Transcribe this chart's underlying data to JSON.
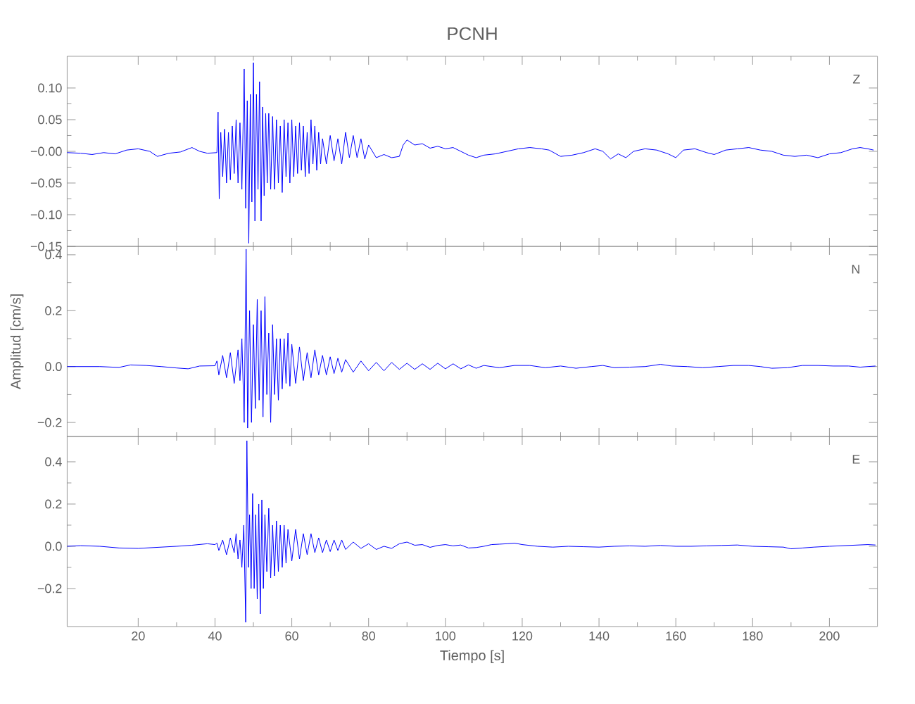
{
  "chart_data": [
    {
      "type": "line",
      "title": "PCNH",
      "annotations": [
        "Z"
      ],
      "color": "#0000ff",
      "tick_labels": "y",
      "xlim": [
        1.5,
        212.5
      ],
      "xticks": [
        20,
        40,
        60,
        80,
        100,
        120,
        140,
        160,
        180,
        200
      ],
      "ylim": [
        -0.15,
        0.15
      ],
      "yticks": [
        {
          "value": -0.15,
          "label": "−0.15"
        },
        {
          "value": -0.1,
          "label": "−0.10"
        },
        {
          "value": -0.05,
          "label": "−0.05"
        },
        {
          "value": 0,
          "label": "−0.00"
        },
        {
          "value": 0.05,
          "label": "0.05"
        },
        {
          "value": 0.1,
          "label": "0.10"
        }
      ],
      "x": [
        1.5,
        5,
        8,
        11,
        14,
        17,
        20,
        23,
        25,
        28,
        31,
        34,
        36,
        38,
        40.5,
        40.8,
        41.1,
        41.5,
        42,
        42.5,
        43,
        43.5,
        44,
        44.5,
        45,
        45.5,
        46,
        46.5,
        47,
        47.6,
        48,
        48.4,
        48.8,
        49.2,
        49.6,
        50,
        50.4,
        50.8,
        51.2,
        51.6,
        52,
        52.4,
        52.8,
        53.2,
        53.6,
        54,
        54.5,
        55,
        55.5,
        56,
        56.5,
        57,
        57.5,
        58,
        58.5,
        59,
        59.5,
        60,
        60.5,
        61,
        61.5,
        62,
        62.5,
        63,
        63.5,
        64,
        64.5,
        65,
        65.5,
        66,
        66.5,
        67,
        67.5,
        68,
        69,
        70,
        71,
        72,
        73,
        74,
        75,
        76,
        77,
        78,
        79,
        80,
        82,
        84,
        86,
        88,
        89,
        90,
        92,
        94,
        96,
        98,
        100,
        102,
        104,
        106,
        108,
        110,
        113,
        116,
        119,
        122,
        125,
        127,
        130,
        133,
        136,
        139,
        141,
        143,
        145,
        147,
        149,
        152,
        155,
        158,
        160,
        162,
        165,
        168,
        170,
        173,
        176,
        179,
        182,
        185,
        188,
        191,
        194,
        197,
        200,
        203,
        206,
        208,
        210,
        211.5
      ],
      "values": [
        -0.002,
        -0.003,
        -0.005,
        -0.002,
        -0.004,
        0.002,
        0.004,
        0.0,
        -0.008,
        -0.003,
        -0.001,
        0.006,
        0.0,
        -0.003,
        -0.002,
        0.062,
        -0.075,
        0.03,
        -0.04,
        0.035,
        -0.05,
        0.03,
        -0.045,
        0.04,
        -0.035,
        0.05,
        -0.05,
        0.045,
        -0.06,
        0.13,
        -0.09,
        0.08,
        -0.145,
        0.09,
        -0.08,
        0.14,
        -0.11,
        0.09,
        -0.06,
        0.11,
        -0.11,
        0.07,
        -0.07,
        0.06,
        -0.05,
        0.06,
        -0.06,
        0.055,
        -0.06,
        0.05,
        -0.05,
        0.04,
        -0.065,
        0.05,
        -0.04,
        0.045,
        -0.05,
        0.05,
        -0.04,
        0.04,
        -0.035,
        0.045,
        -0.03,
        0.04,
        -0.04,
        0.03,
        -0.035,
        0.05,
        -0.02,
        0.04,
        -0.03,
        0.03,
        -0.02,
        0.02,
        -0.02,
        0.025,
        -0.015,
        0.02,
        -0.02,
        0.03,
        -0.01,
        0.025,
        -0.01,
        0.02,
        -0.012,
        0.01,
        -0.01,
        -0.005,
        -0.01,
        -0.008,
        0.01,
        0.018,
        0.01,
        0.012,
        0.005,
        0.008,
        0.004,
        0.006,
        0.0,
        -0.006,
        -0.01,
        -0.006,
        -0.004,
        0.0,
        0.004,
        0.006,
        0.004,
        0.002,
        -0.008,
        -0.006,
        -0.002,
        0.004,
        0.0,
        -0.012,
        -0.004,
        -0.01,
        0.0,
        0.004,
        0.002,
        -0.004,
        -0.01,
        0.002,
        0.004,
        -0.002,
        -0.005,
        0.002,
        0.004,
        0.006,
        0.002,
        0.0,
        -0.006,
        -0.008,
        -0.006,
        -0.01,
        -0.004,
        -0.002,
        0.004,
        0.006,
        0.004,
        0.002
      ]
    },
    {
      "type": "line",
      "ylabel": "Amplitud [cm/s]",
      "annotations": [
        "N"
      ],
      "color": "#0000ff",
      "tick_labels": "y",
      "xlim": [
        1.5,
        212.5
      ],
      "xticks": [
        20,
        40,
        60,
        80,
        100,
        120,
        140,
        160,
        180,
        200
      ],
      "ylim": [
        -0.25,
        0.43
      ],
      "yticks": [
        {
          "value": -0.2,
          "label": "−0.2"
        },
        {
          "value": 0,
          "label": "0.0"
        },
        {
          "value": 0.2,
          "label": "0.2"
        },
        {
          "value": 0.4,
          "label": "0.4"
        }
      ],
      "x": [
        1.5,
        10,
        15,
        18,
        22,
        26,
        30,
        33,
        36,
        40,
        40.5,
        41,
        42,
        43,
        44,
        45,
        46,
        46.5,
        47,
        47.6,
        48.1,
        48.5,
        49,
        49.5,
        50,
        50.5,
        51,
        51.5,
        52,
        52.5,
        53,
        53.5,
        54,
        54.5,
        55,
        55.5,
        56,
        56.5,
        57,
        57.5,
        58,
        58.5,
        59,
        59.5,
        60,
        61,
        62,
        63,
        64,
        65,
        66,
        67,
        68,
        69,
        70,
        71,
        72,
        73,
        74,
        76,
        78,
        80,
        82,
        84,
        86,
        88,
        90,
        92,
        94,
        96,
        98,
        100,
        102,
        104,
        106,
        108,
        110,
        114,
        118,
        122,
        126,
        130,
        134,
        138,
        141,
        144,
        148,
        152,
        156,
        159,
        163,
        167,
        171,
        175,
        179,
        182,
        185,
        189,
        193,
        197,
        201,
        205,
        208,
        212
      ],
      "values": [
        0,
        0,
        -0.003,
        0.006,
        0.004,
        0.0,
        -0.005,
        -0.008,
        0.002,
        0.003,
        0.02,
        -0.03,
        0.04,
        -0.04,
        0.05,
        -0.06,
        0.06,
        -0.05,
        0.1,
        -0.2,
        0.42,
        -0.22,
        0.2,
        -0.2,
        0.15,
        -0.15,
        0.24,
        -0.12,
        0.2,
        -0.18,
        0.25,
        -0.1,
        0.12,
        -0.2,
        0.15,
        -0.1,
        0.1,
        -0.12,
        0.1,
        -0.08,
        0.1,
        -0.06,
        0.12,
        -0.07,
        0.08,
        -0.06,
        0.07,
        -0.05,
        0.05,
        -0.04,
        0.06,
        -0.03,
        0.04,
        -0.03,
        0.035,
        -0.025,
        0.03,
        -0.02,
        0.025,
        -0.02,
        0.02,
        -0.015,
        0.015,
        -0.015,
        0.015,
        -0.01,
        0.012,
        -0.01,
        0.01,
        -0.01,
        0.012,
        -0.008,
        0.01,
        -0.008,
        0.006,
        -0.006,
        0.004,
        -0.004,
        0.004,
        0.004,
        -0.004,
        0.002,
        -0.006,
        0.0,
        0.004,
        -0.004,
        -0.002,
        0.0,
        0.008,
        0.002,
        0.0,
        -0.004,
        0.0,
        0.004,
        0.004,
        0.0,
        -0.006,
        -0.004,
        0.004,
        0.004,
        0.002,
        0.002,
        -0.002,
        0.002
      ]
    },
    {
      "type": "line",
      "xlabel": "Tiempo [s]",
      "annotations": [
        "E"
      ],
      "color": "#0000ff",
      "xlim": [
        1.5,
        212.5
      ],
      "xticks": [
        20,
        40,
        60,
        80,
        100,
        120,
        140,
        160,
        180,
        200
      ],
      "ylim": [
        -0.38,
        0.52
      ],
      "yticks": [
        {
          "value": -0.2,
          "label": "−0.2"
        },
        {
          "value": 0,
          "label": "0.0"
        },
        {
          "value": 0.2,
          "label": "0.2"
        },
        {
          "value": 0.4,
          "label": "0.4"
        }
      ],
      "x": [
        1.5,
        5,
        10,
        15,
        20,
        25,
        30,
        34,
        38,
        40,
        40.5,
        41,
        42,
        43,
        44,
        45,
        45.5,
        46,
        46.5,
        47,
        47.5,
        48,
        48.3,
        48.7,
        49,
        49.4,
        49.8,
        50.2,
        50.6,
        51,
        51.4,
        51.8,
        52.2,
        52.6,
        53,
        53.5,
        54,
        54.5,
        55,
        55.5,
        56,
        56.5,
        57,
        57.5,
        58,
        58.5,
        59,
        60,
        61,
        62,
        63,
        64,
        65,
        66,
        67,
        68,
        69,
        70,
        71,
        72,
        73,
        74,
        76,
        78,
        80,
        82,
        84,
        86,
        88,
        90,
        92,
        94,
        96,
        98,
        100,
        102,
        104,
        106,
        108,
        110,
        112,
        114,
        116,
        118,
        120,
        124,
        128,
        132,
        136,
        140,
        144,
        148,
        152,
        156,
        160,
        164,
        168,
        172,
        176,
        180,
        184,
        188,
        190,
        193,
        196,
        200,
        205,
        210,
        212
      ],
      "values": [
        0,
        0.003,
        0.0,
        -0.008,
        -0.01,
        -0.005,
        0.0,
        0.005,
        0.012,
        0.008,
        0.015,
        -0.02,
        0.03,
        -0.04,
        0.04,
        -0.03,
        0.06,
        -0.06,
        0.03,
        -0.1,
        0.1,
        -0.36,
        0.5,
        -0.1,
        0.15,
        -0.2,
        0.25,
        -0.2,
        0.15,
        -0.25,
        0.2,
        -0.32,
        0.22,
        -0.2,
        0.15,
        -0.12,
        0.18,
        -0.15,
        0.1,
        -0.14,
        0.12,
        -0.12,
        0.1,
        -0.1,
        0.1,
        -0.08,
        0.08,
        -0.07,
        0.08,
        -0.06,
        0.06,
        -0.04,
        0.06,
        -0.03,
        0.04,
        -0.03,
        0.03,
        -0.025,
        0.03,
        -0.02,
        0.03,
        -0.015,
        0.02,
        -0.01,
        0.012,
        -0.015,
        0.0,
        -0.01,
        0.012,
        0.02,
        0.005,
        0.008,
        -0.005,
        0.004,
        0.008,
        0.002,
        0.006,
        -0.008,
        -0.006,
        0.0,
        0.008,
        0.01,
        0.012,
        0.015,
        0.008,
        0.0,
        -0.004,
        0.0,
        -0.002,
        -0.004,
        0.0,
        0.002,
        0.0,
        0.004,
        0.0,
        0.0,
        0.002,
        0.004,
        0.006,
        0.0,
        -0.002,
        -0.004,
        -0.012,
        -0.008,
        -0.004,
        0.0,
        0.004,
        0.008,
        0.006
      ]
    }
  ]
}
